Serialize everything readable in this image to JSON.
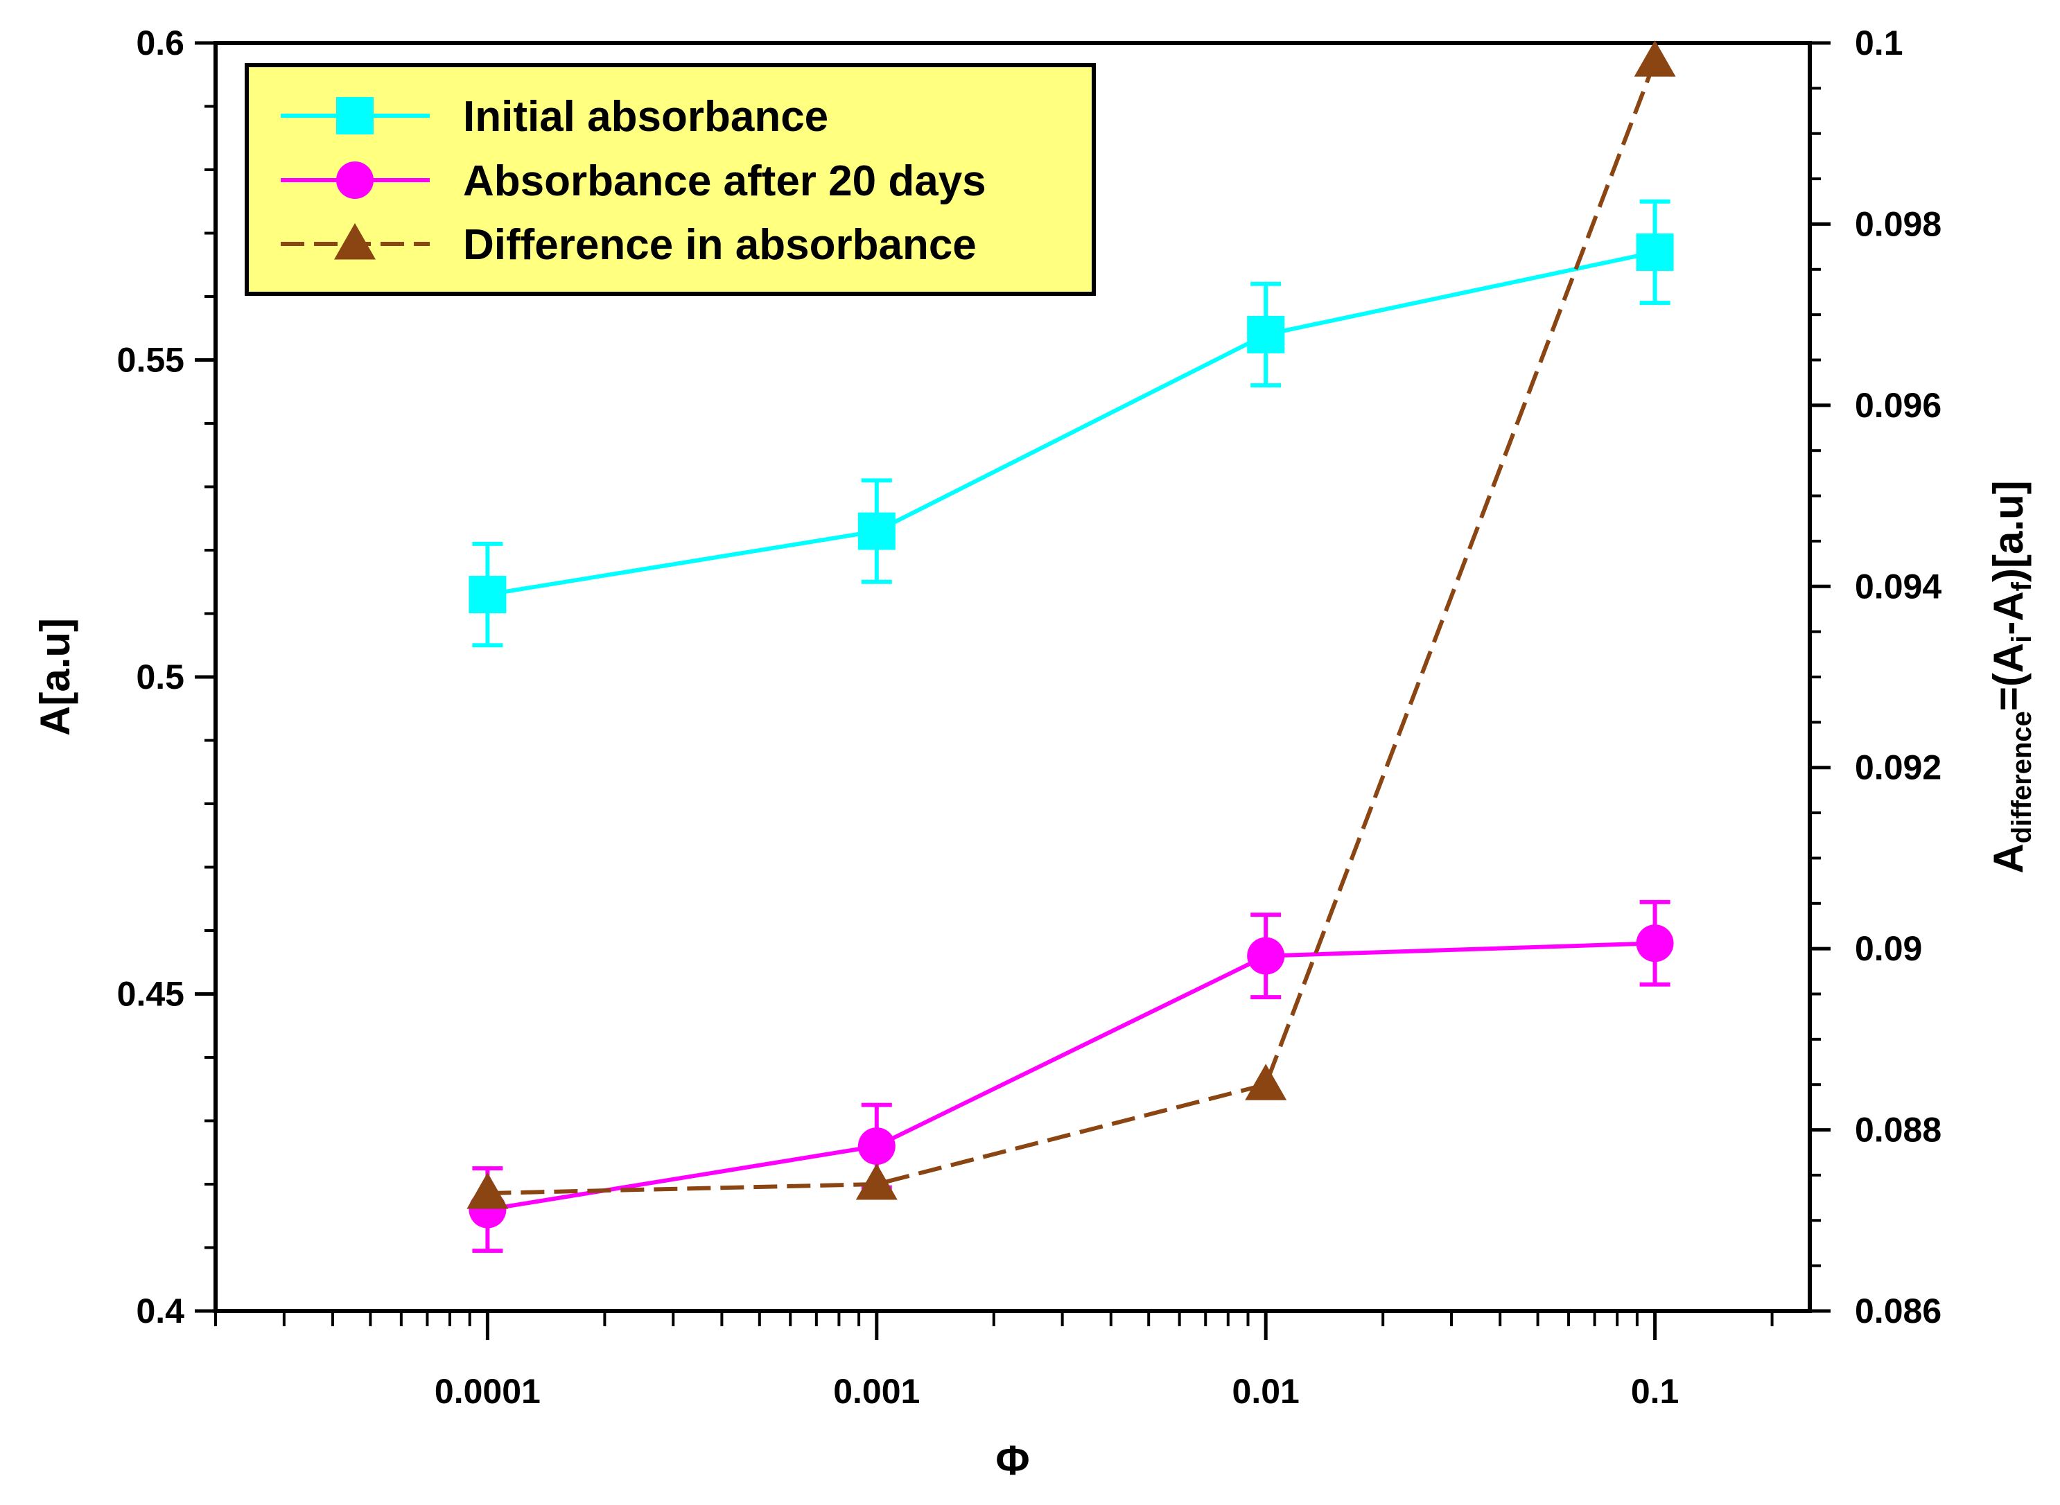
{
  "chart_data": {
    "type": "line",
    "x_scale": "log",
    "xlabel": "Φ",
    "ylabel": "A[a.u]",
    "y2label": {
      "base": "A",
      "base_sub": "difference",
      "eq": "=(A",
      "i_sub": "i",
      "mid": "-A",
      "f_sub": "f",
      "end": ")[a.u]"
    },
    "xlim": [
      2e-05,
      0.25
    ],
    "ylim": [
      0.4,
      0.6
    ],
    "y2lim": [
      0.086,
      0.1
    ],
    "xticks": [
      {
        "value": 0.0001,
        "label": "0.0001"
      },
      {
        "value": 0.001,
        "label": "0.001"
      },
      {
        "value": 0.01,
        "label": "0.01"
      },
      {
        "value": 0.1,
        "label": "0.1"
      }
    ],
    "yticks": [
      {
        "value": 0.4,
        "label": "0.4"
      },
      {
        "value": 0.45,
        "label": "0.45"
      },
      {
        "value": 0.5,
        "label": "0.5"
      },
      {
        "value": 0.55,
        "label": "0.55"
      },
      {
        "value": 0.6,
        "label": "0.6"
      }
    ],
    "y2ticks": [
      {
        "value": 0.086,
        "label": "0.086"
      },
      {
        "value": 0.088,
        "label": "0.088"
      },
      {
        "value": 0.09,
        "label": "0.09"
      },
      {
        "value": 0.092,
        "label": "0.092"
      },
      {
        "value": 0.094,
        "label": "0.094"
      },
      {
        "value": 0.096,
        "label": "0.096"
      },
      {
        "value": 0.098,
        "label": "0.098"
      },
      {
        "value": 0.1,
        "label": "0.1"
      }
    ],
    "series": [
      {
        "name": "Initial absorbance",
        "axis": "left",
        "color": "#00FFFF",
        "marker": "square",
        "dash": "solid",
        "x": [
          0.0001,
          0.001,
          0.01,
          0.1
        ],
        "y": [
          0.513,
          0.523,
          0.554,
          0.567
        ],
        "err": [
          0.008,
          0.008,
          0.008,
          0.008
        ]
      },
      {
        "name": "Absorbance after 20 days",
        "axis": "left",
        "color": "#FF00FF",
        "marker": "circle",
        "dash": "solid",
        "x": [
          0.0001,
          0.001,
          0.01,
          0.1
        ],
        "y": [
          0.416,
          0.426,
          0.456,
          0.458
        ],
        "err": [
          0.0065,
          0.0065,
          0.0065,
          0.0065
        ]
      },
      {
        "name": "Difference in absorbance",
        "axis": "right",
        "color": "#8B4513",
        "marker": "triangle",
        "dash": "dashed",
        "x": [
          0.0001,
          0.001,
          0.01,
          0.1
        ],
        "y": [
          0.0873,
          0.0874,
          0.0885,
          0.0998
        ]
      }
    ],
    "legend": {
      "position": "top-left",
      "background": "#FFFF80",
      "entries": [
        "Initial absorbance",
        "Absorbance after 20 days",
        "Difference in absorbance"
      ]
    }
  }
}
